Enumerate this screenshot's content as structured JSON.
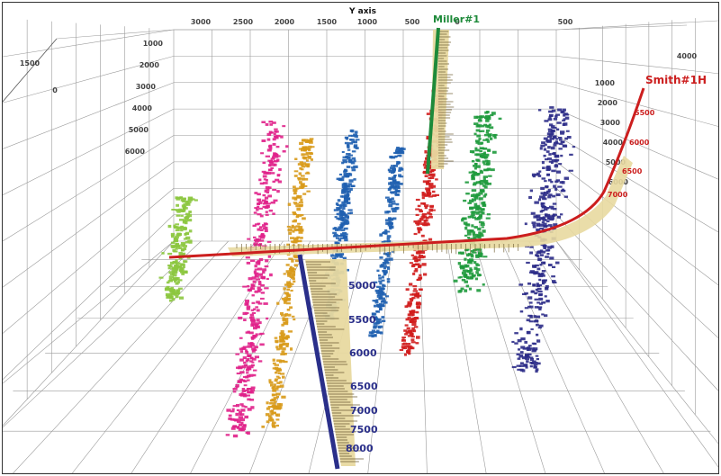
{
  "chart_data": {
    "type": "scatter",
    "title": "",
    "x_axis": {
      "label": "Y axis",
      "ticks": [
        "3000",
        "2500",
        "2000",
        "1500",
        "1000",
        "500",
        "0",
        "500"
      ]
    },
    "depth_ticks": [
      "1000",
      "2000",
      "3000",
      "4000",
      "5000",
      "6000"
    ],
    "left_ticks": [
      "1500",
      "0"
    ],
    "right_ticks": [
      "4000"
    ],
    "wells": [
      {
        "name": "Smith#1H",
        "color": "#cc1e1e",
        "depth_labels": [
          "5500",
          "6000",
          "6500",
          "7000"
        ]
      },
      {
        "name": "Miller#1",
        "color": "#1e8a3a",
        "depth_labels": []
      },
      {
        "name": "",
        "color": "#2a2f8a",
        "depth_labels": [
          "5000",
          "5500",
          "6000",
          "6500",
          "7000",
          "7500",
          "8000"
        ]
      }
    ],
    "series": [
      {
        "stage": 1,
        "color": "#8cc63f",
        "x": 195,
        "ymin": 215,
        "ymax": 330,
        "n": 200,
        "spread": 20
      },
      {
        "stage": 2,
        "color": "#e0218a",
        "x": 285,
        "ymin": 130,
        "ymax": 480,
        "n": 380,
        "spread": 22
      },
      {
        "stage": 3,
        "color": "#d89a1a",
        "x": 322,
        "ymin": 150,
        "ymax": 470,
        "n": 320,
        "spread": 14
      },
      {
        "stage": 4,
        "color": "#1f5fb0",
        "x": 372,
        "ymin": 140,
        "ymax": 350,
        "n": 280,
        "spread": 14
      },
      {
        "stage": 5,
        "color": "#2060b0",
        "x": 425,
        "ymin": 160,
        "ymax": 370,
        "n": 240,
        "spread": 12
      },
      {
        "stage": 6,
        "color": "#d01c1c",
        "x": 463,
        "ymin": 95,
        "ymax": 390,
        "n": 340,
        "spread": 14
      },
      {
        "stage": 7,
        "color": "#1e9a3c",
        "x": 520,
        "ymin": 120,
        "ymax": 320,
        "n": 300,
        "spread": 22
      },
      {
        "stage": 8,
        "color": "#2c2c88",
        "x": 598,
        "ymin": 115,
        "ymax": 410,
        "n": 380,
        "spread": 30
      }
    ]
  }
}
